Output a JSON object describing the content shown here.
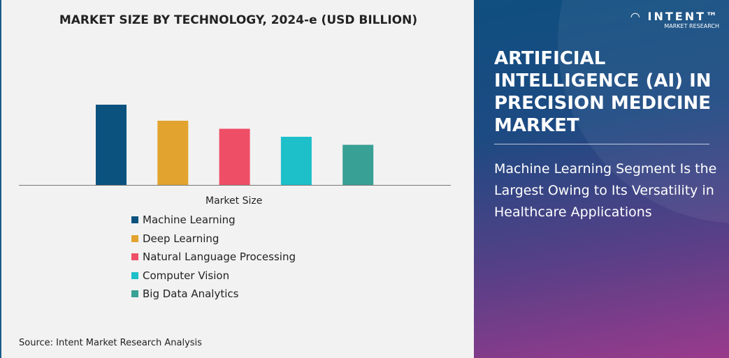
{
  "chart_data": {
    "type": "bar",
    "title": "MARKET SIZE BY TECHNOLOGY, 2024-e (USD BILLION)",
    "categories": [
      "Machine Learning",
      "Deep Learning",
      "Natural Language Processing",
      "Computer Vision",
      "Big Data Analytics"
    ],
    "series": [
      {
        "name": "Market Size",
        "values": [
          100,
          80,
          70,
          60,
          50
        ]
      }
    ],
    "colors": [
      "#0b527e",
      "#e2a42e",
      "#ef4f66",
      "#1dbfc9",
      "#38a094"
    ],
    "ylim": [
      0,
      100
    ],
    "grid": false,
    "legend_placement": "bottom",
    "legend_title": "Market Size"
  },
  "source": "Source: Intent Market Research Analysis",
  "panel": {
    "logo_name": "INTENT",
    "logo_sub": "MARKET RESEARCH",
    "title": "ARTIFICIAL INTELLIGENCE (AI) IN PRECISION MEDICINE MARKET",
    "subtitle": "Machine Learning Segment Is the Largest Owing to Its Versatility in Healthcare Applications"
  }
}
